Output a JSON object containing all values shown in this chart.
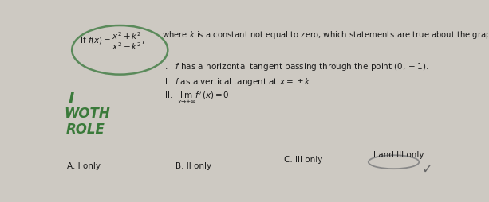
{
  "bg_color": "#cdc9c2",
  "title_q": "where $k$ is a constant not equal to zero, which statements are true about the graph of $f$?",
  "title_func": "If $f(x)=\\dfrac{x^2+k^2}{x^2-k^2}$,",
  "statement_I": "I.   $f$ has a horizontal tangent passing through the point $(0,-1)$.",
  "statement_II": "II.  $f$ as a vertical tangent at $x=\\pm k$.",
  "statement_III": "III.  $\\lim_{x\\to\\pm\\infty} f'(x)=0$",
  "option_A": "A. I only",
  "option_B": "B. II only",
  "option_C": "C. III only",
  "option_D": "I and III only",
  "hand_color": "#3a7a3a",
  "text_color": "#1a1a1a",
  "circle_color": "#5a8a5a",
  "answer_circle_color": "#888888"
}
